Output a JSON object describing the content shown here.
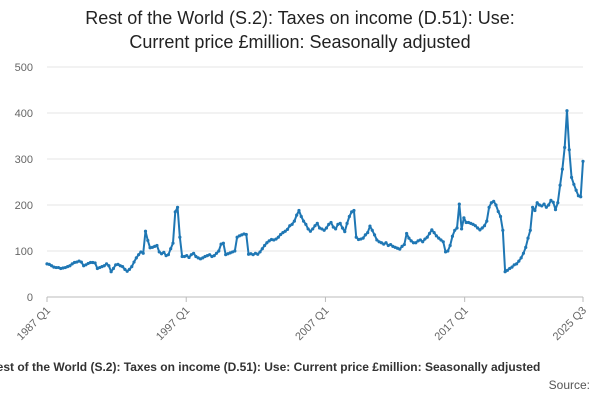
{
  "chart_data": {
    "type": "line",
    "title_lines": [
      "Rest of the World (S.2): Taxes on income (D.51): Use:",
      "Current price £million: Seasonally adjusted"
    ],
    "caption": "Rest of the World (S.2): Taxes on income (D.51): Use: Current price £million: Seasonally adjusted",
    "source_label": "Source:",
    "xlabel": "",
    "ylabel": "",
    "ylim": [
      0,
      500
    ],
    "yticks": [
      0,
      100,
      200,
      300,
      400,
      500
    ],
    "x_start": "1987 Q1",
    "x_end": "2025 Q3",
    "xticks": [
      "1987 Q1",
      "1997 Q1",
      "2007 Q1",
      "2017 Q1",
      "2025 Q3"
    ],
    "grid": "horizontal",
    "series_color": "#1f77b4",
    "series": [
      {
        "values": [
          72,
          71,
          68,
          65,
          64,
          64,
          62,
          63,
          64,
          66,
          68,
          72,
          75,
          76,
          78,
          76,
          68,
          70,
          73,
          75,
          75,
          74,
          62,
          64,
          66,
          68,
          72,
          68,
          55,
          62,
          70,
          71,
          68,
          66,
          60,
          56,
          60,
          66,
          76,
          85,
          92,
          98,
          95,
          143,
          123,
          107,
          108,
          110,
          112,
          98,
          94,
          97,
          90,
          92,
          105,
          117,
          185,
          195,
          130,
          88,
          88,
          90,
          86,
          92,
          95,
          88,
          85,
          83,
          85,
          88,
          90,
          92,
          88,
          90,
          95,
          100,
          115,
          117,
          92,
          94,
          96,
          98,
          100,
          130,
          133,
          135,
          137,
          136,
          93,
          94,
          92,
          95,
          93,
          98,
          105,
          112,
          118,
          122,
          125,
          124,
          126,
          130,
          136,
          140,
          143,
          147,
          155,
          158,
          165,
          178,
          188,
          175,
          165,
          158,
          148,
          143,
          148,
          155,
          160,
          150,
          148,
          145,
          150,
          158,
          162,
          152,
          148,
          158,
          160,
          150,
          142,
          160,
          175,
          185,
          188,
          130,
          125,
          126,
          128,
          135,
          140,
          154,
          145,
          135,
          124,
          120,
          118,
          115,
          118,
          112,
          114,
          110,
          108,
          106,
          104,
          110,
          114,
          138,
          128,
          122,
          118,
          118,
          122,
          124,
          120,
          126,
          130,
          138,
          146,
          140,
          133,
          128,
          124,
          120,
          98,
          100,
          112,
          132,
          145,
          150,
          202,
          148,
          172,
          162,
          162,
          160,
          158,
          155,
          150,
          146,
          150,
          155,
          165,
          195,
          205,
          208,
          200,
          186,
          175,
          145,
          55,
          58,
          62,
          65,
          70,
          72,
          78,
          85,
          95,
          108,
          128,
          145,
          195,
          188,
          205,
          200,
          198,
          202,
          195,
          200,
          210,
          206,
          190,
          205,
          243,
          278,
          325,
          405,
          320,
          260,
          245,
          232,
          220,
          218,
          295
        ]
      }
    ]
  }
}
